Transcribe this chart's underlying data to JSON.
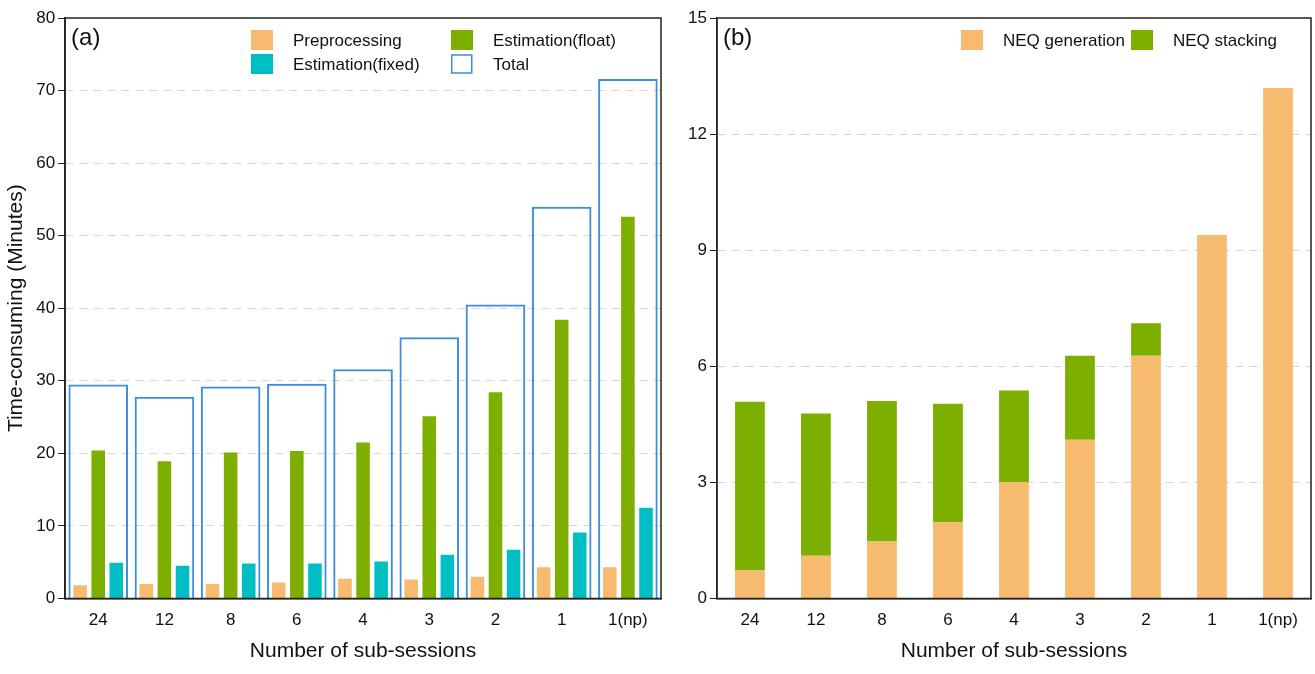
{
  "chart_data": [
    {
      "type": "bar",
      "title": "(a)",
      "xlabel": "Number of sub-sessions",
      "ylabel": "Time-consuming (Minutes)",
      "categories": [
        "24",
        "12",
        "8",
        "6",
        "4",
        "3",
        "2",
        "1",
        "1(np)"
      ],
      "series": [
        {
          "name": "Preprocessing",
          "color": "#f6bb6e",
          "values": [
            1.8,
            2.0,
            2.0,
            2.2,
            2.7,
            2.6,
            3.0,
            4.3,
            4.3
          ]
        },
        {
          "name": "Estimation(float)",
          "color": "#7daf00",
          "values": [
            20.4,
            18.9,
            20.1,
            20.3,
            21.5,
            25.1,
            28.4,
            38.4,
            52.6
          ]
        },
        {
          "name": "Estimation(fixed)",
          "color": "#00bfc4",
          "values": [
            4.9,
            4.5,
            4.8,
            4.8,
            5.1,
            6.0,
            6.7,
            9.1,
            12.5
          ]
        },
        {
          "name": "Total",
          "color": "#3d8fde",
          "line_style": "solid",
          "values": [
            29.5,
            27.8,
            29.2,
            29.6,
            31.6,
            36.0,
            40.5,
            54.0,
            71.6
          ]
        }
      ],
      "ylim": [
        0,
        80
      ],
      "yticks": [
        0,
        10,
        20,
        30,
        40,
        50,
        60,
        70,
        80
      ],
      "grid": "y",
      "legend": "top right"
    },
    {
      "type": "bar",
      "title": "(b)",
      "xlabel": "Number of sub-sessions",
      "stacked": true,
      "categories": [
        "24",
        "12",
        "8",
        "6",
        "4",
        "3",
        "2",
        "1",
        "1(np)"
      ],
      "series": [
        {
          "name": "NEQ generation",
          "color": "#f6bb6e",
          "values": [
            0.72,
            1.1,
            1.47,
            1.97,
            3.0,
            4.1,
            6.27,
            9.39,
            13.19
          ]
        },
        {
          "name": "NEQ stacking",
          "color": "#7daf00",
          "values": [
            4.36,
            3.68,
            3.63,
            3.06,
            2.37,
            2.17,
            0.84,
            0,
            0
          ]
        }
      ],
      "ylim": [
        0,
        15
      ],
      "yticks": [
        0,
        3,
        6,
        9,
        12,
        15
      ],
      "grid": "y",
      "legend": "top right"
    }
  ]
}
